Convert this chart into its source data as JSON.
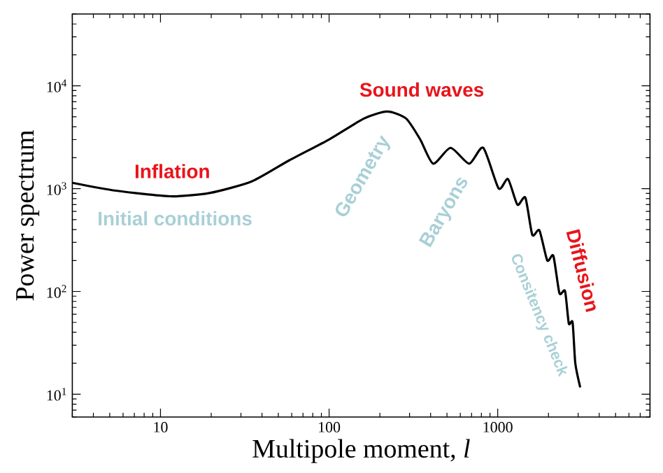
{
  "chart_data": {
    "type": "line",
    "xlabel": "Multipole moment, *l*",
    "ylabel": "Power spectrum",
    "log": "xy",
    "xlim": [
      3,
      8000
    ],
    "ylim": [
      6,
      50000
    ],
    "xticks": [
      10,
      100,
      1000
    ],
    "yticks": [
      {
        "value": 10,
        "label": "10$^{1}$"
      },
      {
        "value": 100,
        "label": "10$^{2}$"
      },
      {
        "value": 1000,
        "label": "10$^{3}$"
      },
      {
        "value": 10000,
        "label": "10$^{4}$"
      }
    ],
    "grid": false,
    "marker": "none",
    "line_style": "solid",
    "annotations": [
      "Sound waves",
      "Inflation",
      "Initial conditions",
      "Geometry",
      "Baryons",
      "Consitency check",
      "Diffusion"
    ],
    "series": [
      {
        "color": "#000000",
        "x": [
          3,
          5.45,
          11.4,
          19.5,
          34.8,
          57.9,
          100,
          161,
          221,
          286,
          347,
          414,
          525,
          677,
          821,
          1012,
          1150,
          1309,
          1459,
          1604,
          1767,
          1968,
          2138,
          2323,
          2507,
          2640,
          2780,
          2885,
          3077
        ],
        "values": [
          1140,
          955,
          843,
          906,
          1177,
          1882,
          3010,
          4810,
          5620,
          4810,
          3010,
          1750,
          2495,
          1750,
          2495,
          1006,
          1240,
          698,
          817,
          355,
          393,
          200,
          222,
          96,
          101,
          48.8,
          50,
          20,
          11.9
        ]
      }
    ]
  }
}
